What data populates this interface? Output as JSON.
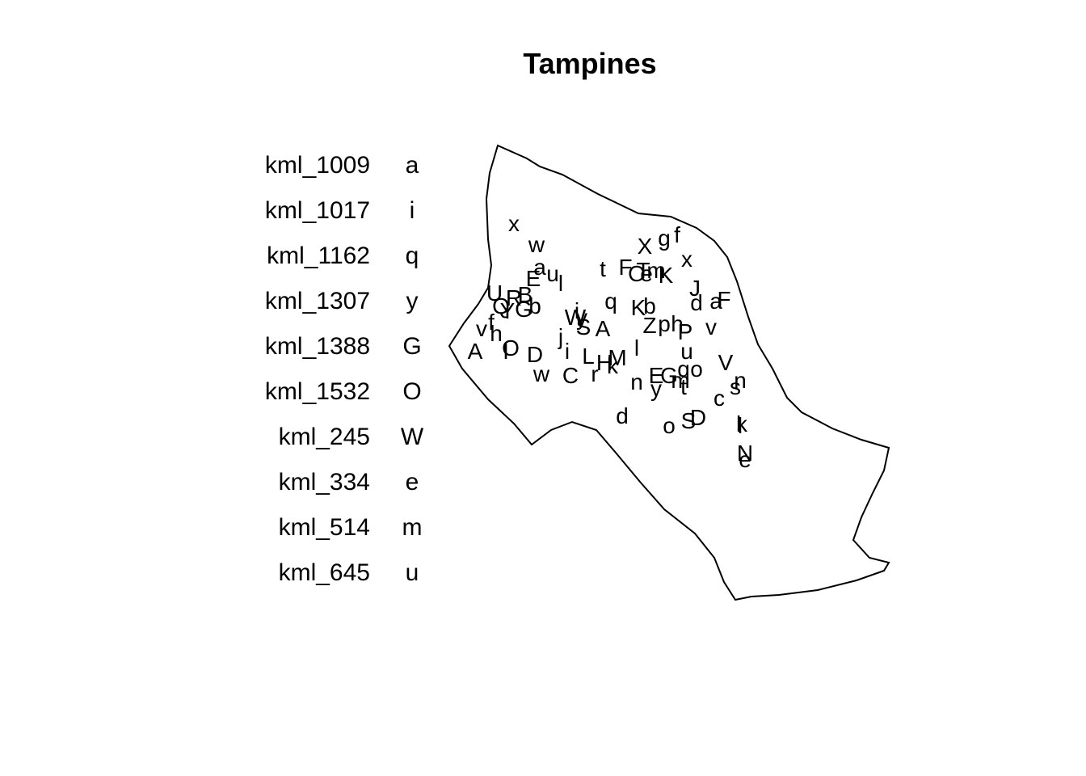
{
  "title": "Tampines",
  "legend": [
    {
      "name": "kml_1009",
      "code": "a"
    },
    {
      "name": "kml_1017",
      "code": "i"
    },
    {
      "name": "kml_1162",
      "code": "q"
    },
    {
      "name": "kml_1307",
      "code": "y"
    },
    {
      "name": "kml_1388",
      "code": "G"
    },
    {
      "name": "kml_1532",
      "code": "O"
    },
    {
      "name": "kml_245",
      "code": "W"
    },
    {
      "name": "kml_334",
      "code": "e"
    },
    {
      "name": "kml_514",
      "code": "m"
    },
    {
      "name": "kml_645",
      "code": "u"
    }
  ],
  "point_labels": [
    "x",
    "w",
    "a",
    "u",
    "l",
    "E",
    "U",
    "R",
    "B",
    "Q",
    "Y",
    "G",
    "b",
    "f",
    "v",
    "h",
    "A",
    "O",
    "I",
    "D",
    "w",
    "i",
    "j",
    "C",
    "r",
    "L",
    "H",
    "k",
    "M",
    "t",
    "F",
    "T",
    "X",
    "g",
    "f",
    "x",
    "O",
    "e",
    "m",
    "K",
    "q",
    "K",
    "b",
    "Z",
    "p",
    "h",
    "P",
    "l",
    "u",
    "J",
    "d",
    "a",
    "F",
    "v",
    "V",
    "E",
    "G",
    "m",
    "y",
    "t",
    "q",
    "o",
    "n",
    "s",
    "n",
    "c",
    "d",
    "o",
    "S",
    "D",
    "k",
    "l",
    "N",
    "e",
    "A",
    "S",
    "W",
    "i",
    "y"
  ]
}
